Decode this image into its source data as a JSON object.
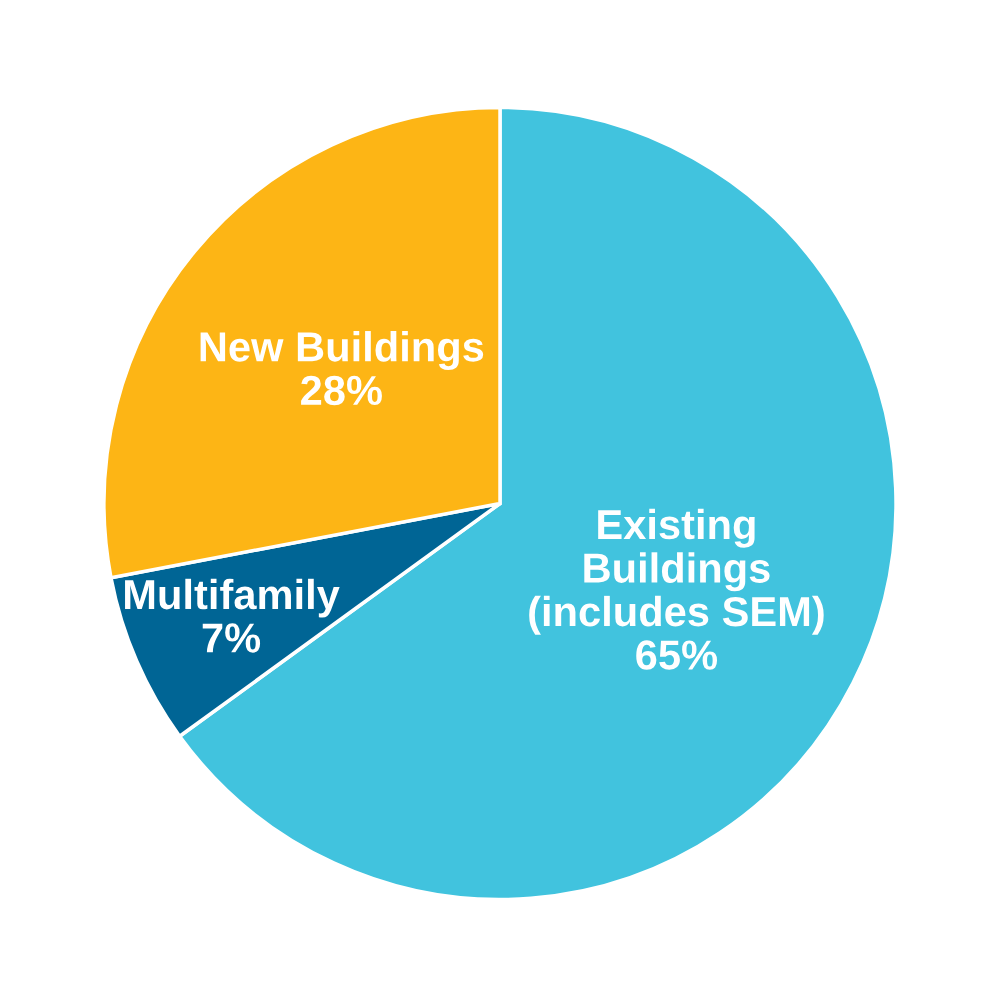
{
  "chart_data": {
    "type": "pie",
    "categories": [
      "Existing\nBuildings\n(includes SEM)",
      "Multifamily",
      "New Buildings"
    ],
    "values": [
      65,
      7,
      28
    ],
    "value_labels": [
      "65%",
      "7%",
      "28%"
    ],
    "colors": [
      "#41c3de",
      "#006595",
      "#fdb515"
    ],
    "legend": false
  }
}
